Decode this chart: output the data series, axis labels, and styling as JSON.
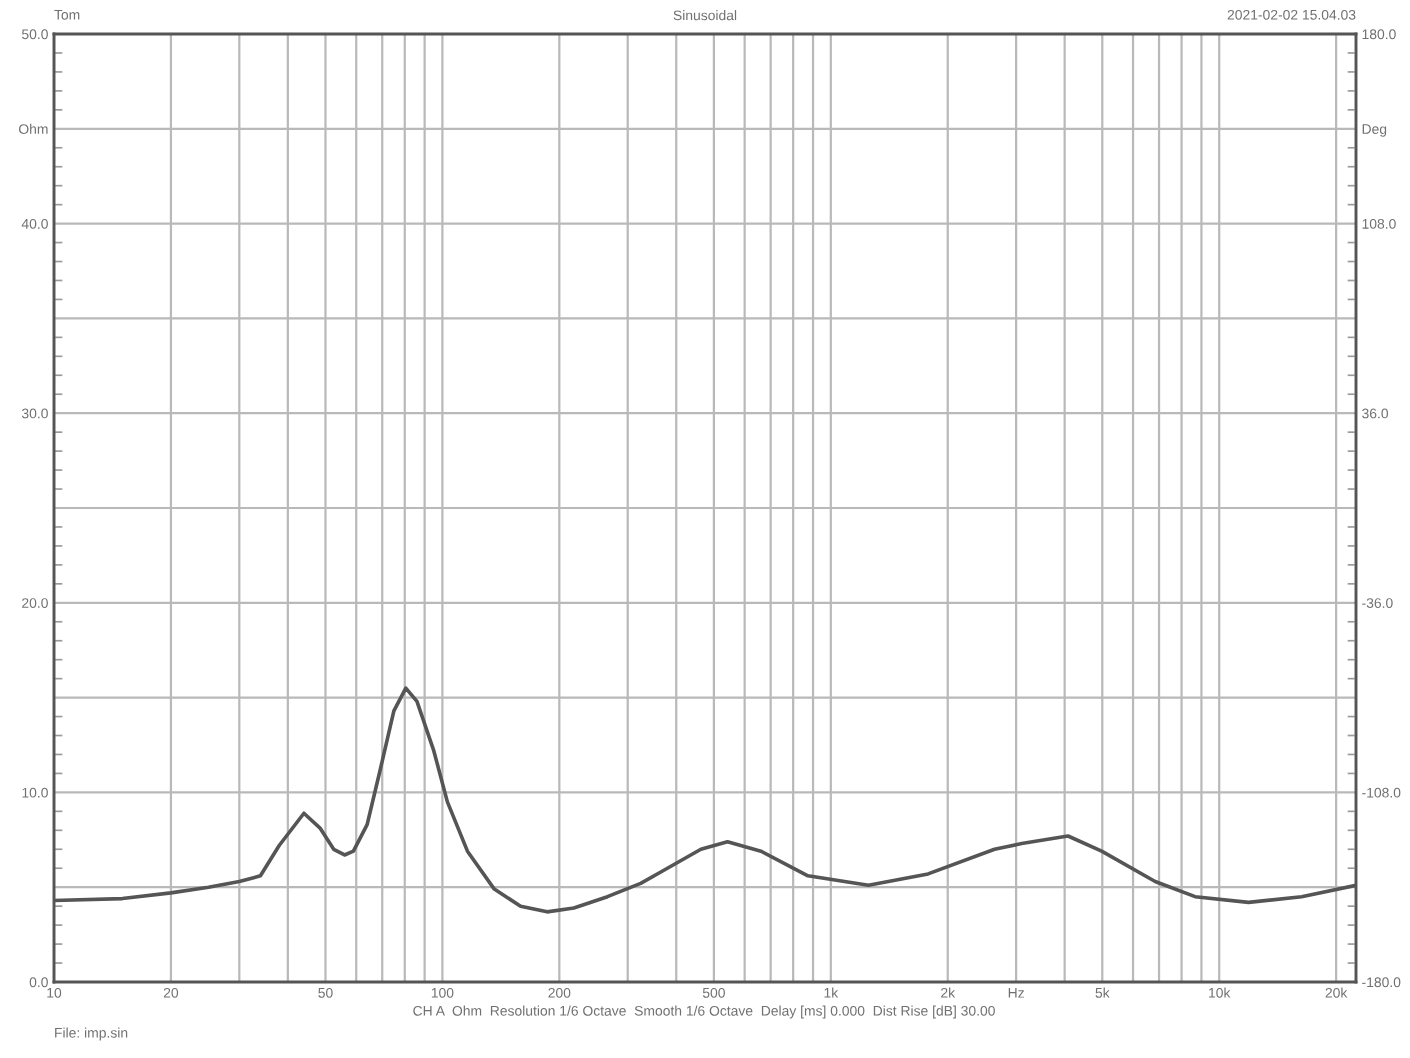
{
  "chart_data": {
    "type": "line",
    "title": "Sinusoidal",
    "annotations": [
      "Tom",
      "2021-02-02 15.04.03",
      "CH A  Ohm  Resolution 1/6 Octave  Smooth 1/6 Octave  Delay [ms] 0.000  Dist Rise [dB] 30.00",
      "File: imp.sin"
    ],
    "series": [
      {
        "color": "#555555",
        "x": [
          10,
          15,
          20,
          25,
          30,
          34,
          38,
          44,
          48.5,
          52.5,
          56,
          59,
          64,
          69,
          75,
          80.5,
          86,
          95,
          103,
          116,
          136,
          159,
          186,
          218,
          266,
          324,
          365,
          463,
          542,
          661,
          873,
          1250,
          1780,
          2640,
          3100,
          4080,
          4980,
          6840,
          8670,
          11900,
          16300,
          22500
        ],
        "values": [
          4.3,
          4.4,
          4.7,
          5.0,
          5.3,
          5.6,
          7.2,
          8.9,
          8.1,
          7.0,
          6.7,
          6.9,
          8.3,
          11.1,
          14.3,
          15.5,
          14.8,
          12.2,
          9.5,
          6.9,
          4.9,
          4.0,
          3.7,
          3.9,
          4.5,
          5.2,
          5.8,
          7.0,
          7.4,
          6.9,
          5.6,
          5.1,
          5.7,
          7.0,
          7.3,
          7.7,
          6.9,
          5.3,
          4.5,
          4.2,
          4.5,
          5.1
        ]
      }
    ],
    "log": "x",
    "xlim": [
      10,
      22500
    ],
    "xticks": [
      10,
      20,
      {
        "value": 30,
        "label": null
      },
      {
        "value": 40,
        "label": null
      },
      50,
      {
        "value": 60,
        "label": null
      },
      {
        "value": 70,
        "label": null
      },
      {
        "value": 80,
        "label": null
      },
      {
        "value": 90,
        "label": null
      },
      100,
      200,
      {
        "value": 300,
        "label": null
      },
      {
        "value": 400,
        "label": null
      },
      500,
      {
        "value": 600,
        "label": null
      },
      {
        "value": 700,
        "label": null
      },
      {
        "value": 800,
        "label": null
      },
      {
        "value": 900,
        "label": null
      },
      {
        "value": 1000,
        "label": "1k"
      },
      {
        "value": 2000,
        "label": "2k"
      },
      {
        "value": 3000,
        "label": "Hz"
      },
      {
        "value": 4000,
        "label": null
      },
      {
        "value": 5000,
        "label": "5k"
      },
      {
        "value": 6000,
        "label": null
      },
      {
        "value": 7000,
        "label": null
      },
      {
        "value": 8000,
        "label": null
      },
      {
        "value": 9000,
        "label": null
      },
      {
        "value": 10000,
        "label": "10k"
      },
      {
        "value": 20000,
        "label": "20k"
      }
    ],
    "ylim": [
      0,
      50
    ],
    "yticks": [
      {
        "value": 0,
        "label": "0.0"
      },
      {
        "value": 5,
        "label": null
      },
      {
        "value": 10,
        "label": "10.0"
      },
      {
        "value": 15,
        "label": null
      },
      {
        "value": 20,
        "label": "20.0"
      },
      {
        "value": 25,
        "label": null
      },
      {
        "value": 30,
        "label": "30.0"
      },
      {
        "value": 35,
        "label": null
      },
      {
        "value": 40,
        "label": "40.0"
      },
      {
        "value": 45,
        "label": "Ohm"
      },
      {
        "value": 50,
        "label": "50.0"
      }
    ],
    "y2lim": [
      -180,
      180
    ],
    "y2ticks": [
      {
        "value": -180,
        "label": "-180.0"
      },
      {
        "value": -144,
        "label": null
      },
      {
        "value": -108,
        "label": "-108.0"
      },
      {
        "value": -72,
        "label": null
      },
      {
        "value": -36,
        "label": "-36.0"
      },
      {
        "value": 0,
        "label": null
      },
      {
        "value": 36,
        "label": "36.0"
      },
      {
        "value": 72,
        "label": null
      },
      {
        "value": 108,
        "label": "108.0"
      },
      {
        "value": 144,
        "label": "Deg"
      },
      {
        "value": 180,
        "label": "180.0"
      }
    ],
    "grid": true,
    "line_style": "solid"
  }
}
